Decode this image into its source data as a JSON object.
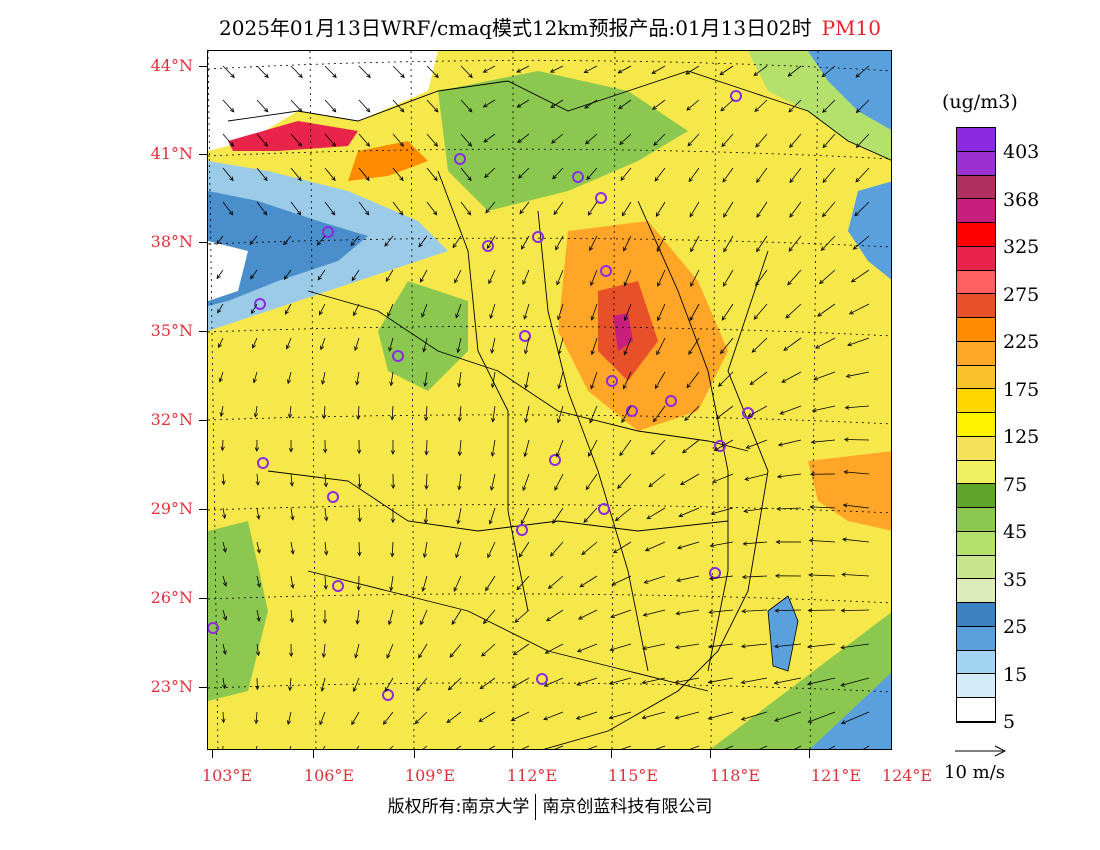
{
  "title": {
    "main": "2025年01月13日WRF/cmaq模式12km预报产品:01月13日02时",
    "pollutant": "PM10",
    "pollutant_color": "#e8202a"
  },
  "axes": {
    "lat_ticks": [
      "44°N",
      "41°N",
      "38°N",
      "35°N",
      "32°N",
      "29°N",
      "26°N",
      "23°N"
    ],
    "lon_ticks": [
      "103°E",
      "106°E",
      "109°E",
      "112°E",
      "115°E",
      "118°E",
      "121°E",
      "124°E"
    ]
  },
  "colorbar": {
    "units": "(ug/m3)",
    "labels": [
      "403",
      "368",
      "325",
      "275",
      "225",
      "175",
      "125",
      "75",
      "45",
      "35",
      "25",
      "15",
      "5"
    ],
    "colors": [
      "#8a2be2",
      "#9b30d0",
      "#b03060",
      "#c81f7d",
      "#ff0000",
      "#e8244a",
      "#ff6060",
      "#e8502a",
      "#ff8c00",
      "#ffa528",
      "#f9c22a",
      "#ffd700",
      "#fff200",
      "#f5e05a",
      "#f0f060",
      "#5ea52a",
      "#8cc850",
      "#b4e06c",
      "#c8e68c",
      "#dcebb8",
      "#3c82c0",
      "#5aa0dc",
      "#a0d4f0",
      "#d2ecfa",
      "#ffffff"
    ]
  },
  "wind_key": {
    "label": "10 m/s"
  },
  "copyright": {
    "left": "版权所有:南京大学",
    "right": "南京创蓝科技有限公司"
  }
}
